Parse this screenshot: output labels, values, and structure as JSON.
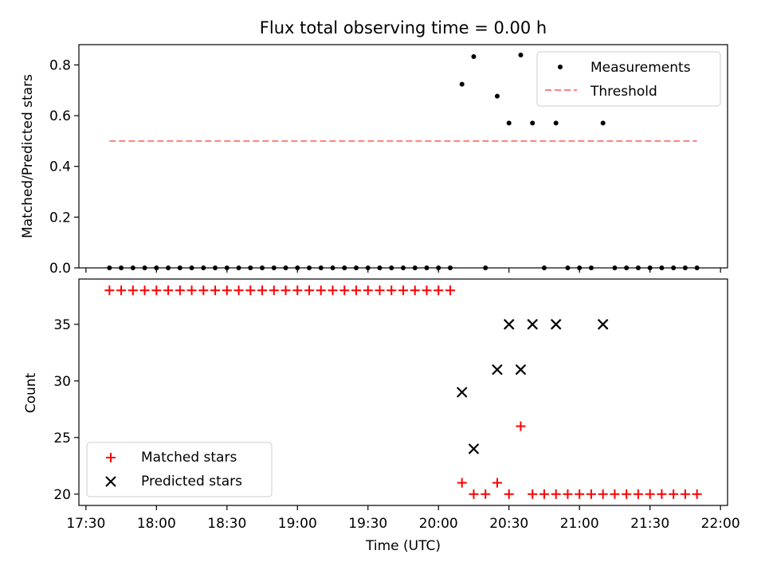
{
  "chart_data": {
    "title": "Flux total observing time = 0.00 h",
    "xlabel": "Time (UTC)",
    "x_unit": "UTC time (HH:MM)",
    "xlim": [
      "17:27",
      "22:03"
    ],
    "xticks": [
      "17:30",
      "18:00",
      "18:30",
      "19:00",
      "19:30",
      "20:00",
      "20:30",
      "21:00",
      "21:30",
      "22:00"
    ],
    "panels": [
      {
        "type": "scatter",
        "ylabel": "Matched/Predicted stars",
        "ylim": [
          0,
          0.88
        ],
        "yticks": [
          "0.0",
          "0.2",
          "0.4",
          "0.6",
          "0.8"
        ],
        "legend": {
          "placement": "upper right",
          "entries": [
            "Measurements",
            "Threshold"
          ]
        },
        "series": [
          {
            "name": "Measurements",
            "marker": "dot",
            "color": "#000000",
            "points": [
              [
                "17:40",
                0
              ],
              [
                "17:45",
                0
              ],
              [
                "17:50",
                0
              ],
              [
                "17:55",
                0
              ],
              [
                "18:00",
                0
              ],
              [
                "18:05",
                0
              ],
              [
                "18:10",
                0
              ],
              [
                "18:15",
                0
              ],
              [
                "18:20",
                0
              ],
              [
                "18:25",
                0
              ],
              [
                "18:30",
                0
              ],
              [
                "18:35",
                0
              ],
              [
                "18:40",
                0
              ],
              [
                "18:45",
                0
              ],
              [
                "18:50",
                0
              ],
              [
                "18:55",
                0
              ],
              [
                "19:00",
                0
              ],
              [
                "19:05",
                0
              ],
              [
                "19:10",
                0
              ],
              [
                "19:15",
                0
              ],
              [
                "19:20",
                0
              ],
              [
                "19:25",
                0
              ],
              [
                "19:30",
                0
              ],
              [
                "19:35",
                0
              ],
              [
                "19:40",
                0
              ],
              [
                "19:45",
                0
              ],
              [
                "19:50",
                0
              ],
              [
                "19:55",
                0
              ],
              [
                "20:00",
                0
              ],
              [
                "20:05",
                0
              ],
              [
                "20:10",
                0.724
              ],
              [
                "20:15",
                0.833
              ],
              [
                "20:20",
                0
              ],
              [
                "20:25",
                0.677
              ],
              [
                "20:30",
                0.571
              ],
              [
                "20:35",
                0.839
              ],
              [
                "20:40",
                0.571
              ],
              [
                "20:45",
                0
              ],
              [
                "20:50",
                0.571
              ],
              [
                "20:55",
                0
              ],
              [
                "21:00",
                0
              ],
              [
                "21:05",
                0
              ],
              [
                "21:10",
                0.571
              ],
              [
                "21:15",
                0
              ],
              [
                "21:20",
                0
              ],
              [
                "21:25",
                0
              ],
              [
                "21:30",
                0
              ],
              [
                "21:35",
                0
              ],
              [
                "21:40",
                0
              ],
              [
                "21:45",
                0
              ],
              [
                "21:50",
                0
              ]
            ]
          },
          {
            "name": "Threshold",
            "type": "line",
            "style": "dashed",
            "color": "#ff7f7f",
            "x": [
              "17:40",
              "21:50"
            ],
            "y": [
              0.5,
              0.5
            ]
          }
        ]
      },
      {
        "type": "scatter",
        "ylabel": "Count",
        "ylim": [
          19,
          39
        ],
        "yticks": [
          "20",
          "25",
          "30",
          "35"
        ],
        "legend": {
          "placement": "lower left",
          "entries": [
            "Matched stars",
            "Predicted stars"
          ]
        },
        "series": [
          {
            "name": "Matched stars",
            "marker": "plus",
            "color": "#ff0000",
            "points": [
              [
                "17:40",
                38
              ],
              [
                "17:45",
                38
              ],
              [
                "17:50",
                38
              ],
              [
                "17:55",
                38
              ],
              [
                "18:00",
                38
              ],
              [
                "18:05",
                38
              ],
              [
                "18:10",
                38
              ],
              [
                "18:15",
                38
              ],
              [
                "18:20",
                38
              ],
              [
                "18:25",
                38
              ],
              [
                "18:30",
                38
              ],
              [
                "18:35",
                38
              ],
              [
                "18:40",
                38
              ],
              [
                "18:45",
                38
              ],
              [
                "18:50",
                38
              ],
              [
                "18:55",
                38
              ],
              [
                "19:00",
                38
              ],
              [
                "19:05",
                38
              ],
              [
                "19:10",
                38
              ],
              [
                "19:15",
                38
              ],
              [
                "19:20",
                38
              ],
              [
                "19:25",
                38
              ],
              [
                "19:30",
                38
              ],
              [
                "19:35",
                38
              ],
              [
                "19:40",
                38
              ],
              [
                "19:45",
                38
              ],
              [
                "19:50",
                38
              ],
              [
                "19:55",
                38
              ],
              [
                "20:00",
                38
              ],
              [
                "20:05",
                38
              ],
              [
                "20:10",
                21
              ],
              [
                "20:15",
                20
              ],
              [
                "20:20",
                20
              ],
              [
                "20:25",
                21
              ],
              [
                "20:30",
                20
              ],
              [
                "20:35",
                26
              ],
              [
                "20:40",
                20
              ],
              [
                "20:45",
                20
              ],
              [
                "20:50",
                20
              ],
              [
                "20:55",
                20
              ],
              [
                "21:00",
                20
              ],
              [
                "21:05",
                20
              ],
              [
                "21:10",
                20
              ],
              [
                "21:15",
                20
              ],
              [
                "21:20",
                20
              ],
              [
                "21:25",
                20
              ],
              [
                "21:30",
                20
              ],
              [
                "21:35",
                20
              ],
              [
                "21:40",
                20
              ],
              [
                "21:45",
                20
              ],
              [
                "21:50",
                20
              ]
            ]
          },
          {
            "name": "Predicted stars",
            "marker": "x",
            "color": "#000000",
            "points": [
              [
                "20:10",
                29
              ],
              [
                "20:15",
                24
              ],
              [
                "20:25",
                31
              ],
              [
                "20:30",
                35
              ],
              [
                "20:35",
                31
              ],
              [
                "20:40",
                35
              ],
              [
                "20:50",
                35
              ],
              [
                "21:10",
                35
              ]
            ]
          }
        ]
      }
    ]
  }
}
